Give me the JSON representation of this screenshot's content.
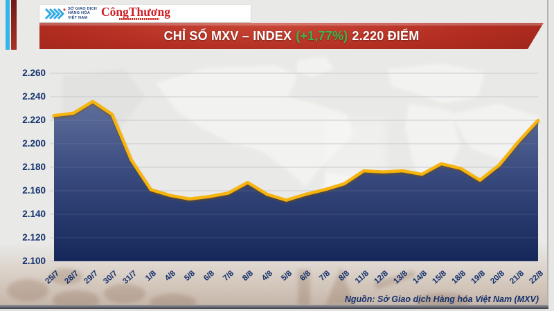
{
  "header": {
    "mxv_logo": {
      "line1": "SỞ GIAO DỊCH",
      "line2": "HÀNG HÓA",
      "line3": "VIỆT NAM"
    },
    "congthuong_logo": {
      "part1": "Công",
      "part2": "Thương"
    },
    "banner": {
      "title_prefix": "CHỈ SỐ MXV – INDEX",
      "change": "(+1,77%)",
      "value_suffix": "2.220 ĐIỂM",
      "change_color": "#3ab54a"
    }
  },
  "chart_data": {
    "type": "area",
    "title": "CHỈ SỐ MXV – INDEX (+1,77%) 2.220 ĐIỂM",
    "x": [
      "25/7",
      "28/7",
      "29/7",
      "30/7",
      "31/7",
      "1/8",
      "4/8",
      "5/8",
      "6/8",
      "7/8",
      "8/8",
      "4/8",
      "5/8",
      "6/8",
      "7/8",
      "8/8",
      "11/8",
      "12/8",
      "13/8",
      "14/8",
      "15/8",
      "18/8",
      "19/8",
      "20/8",
      "21/8",
      "22/8"
    ],
    "values": [
      2224,
      2226,
      2236,
      2225,
      2186,
      2161,
      2156,
      2153,
      2155,
      2158,
      2167,
      2157,
      2152,
      2157,
      2161,
      2166,
      2177,
      2176,
      2177,
      2174,
      2183,
      2179,
      2169,
      2182,
      2202,
      2220
    ],
    "ylim": [
      2100,
      2260
    ],
    "ytick_step": 20,
    "ytick_labels": [
      "2.100",
      "2.120",
      "2.140",
      "2.160",
      "2.180",
      "2.200",
      "2.220",
      "2.240",
      "2.260"
    ],
    "grid": true,
    "legend": "none",
    "line_color": "#f6b40c",
    "fill_top_color": "#5f6f9c",
    "fill_bottom_color": "#16285a",
    "axis_text_color": "#14316e"
  },
  "footer": {
    "source": "Nguồn: Sở Giao dịch Hàng hóa Việt Nam (MXV)"
  }
}
